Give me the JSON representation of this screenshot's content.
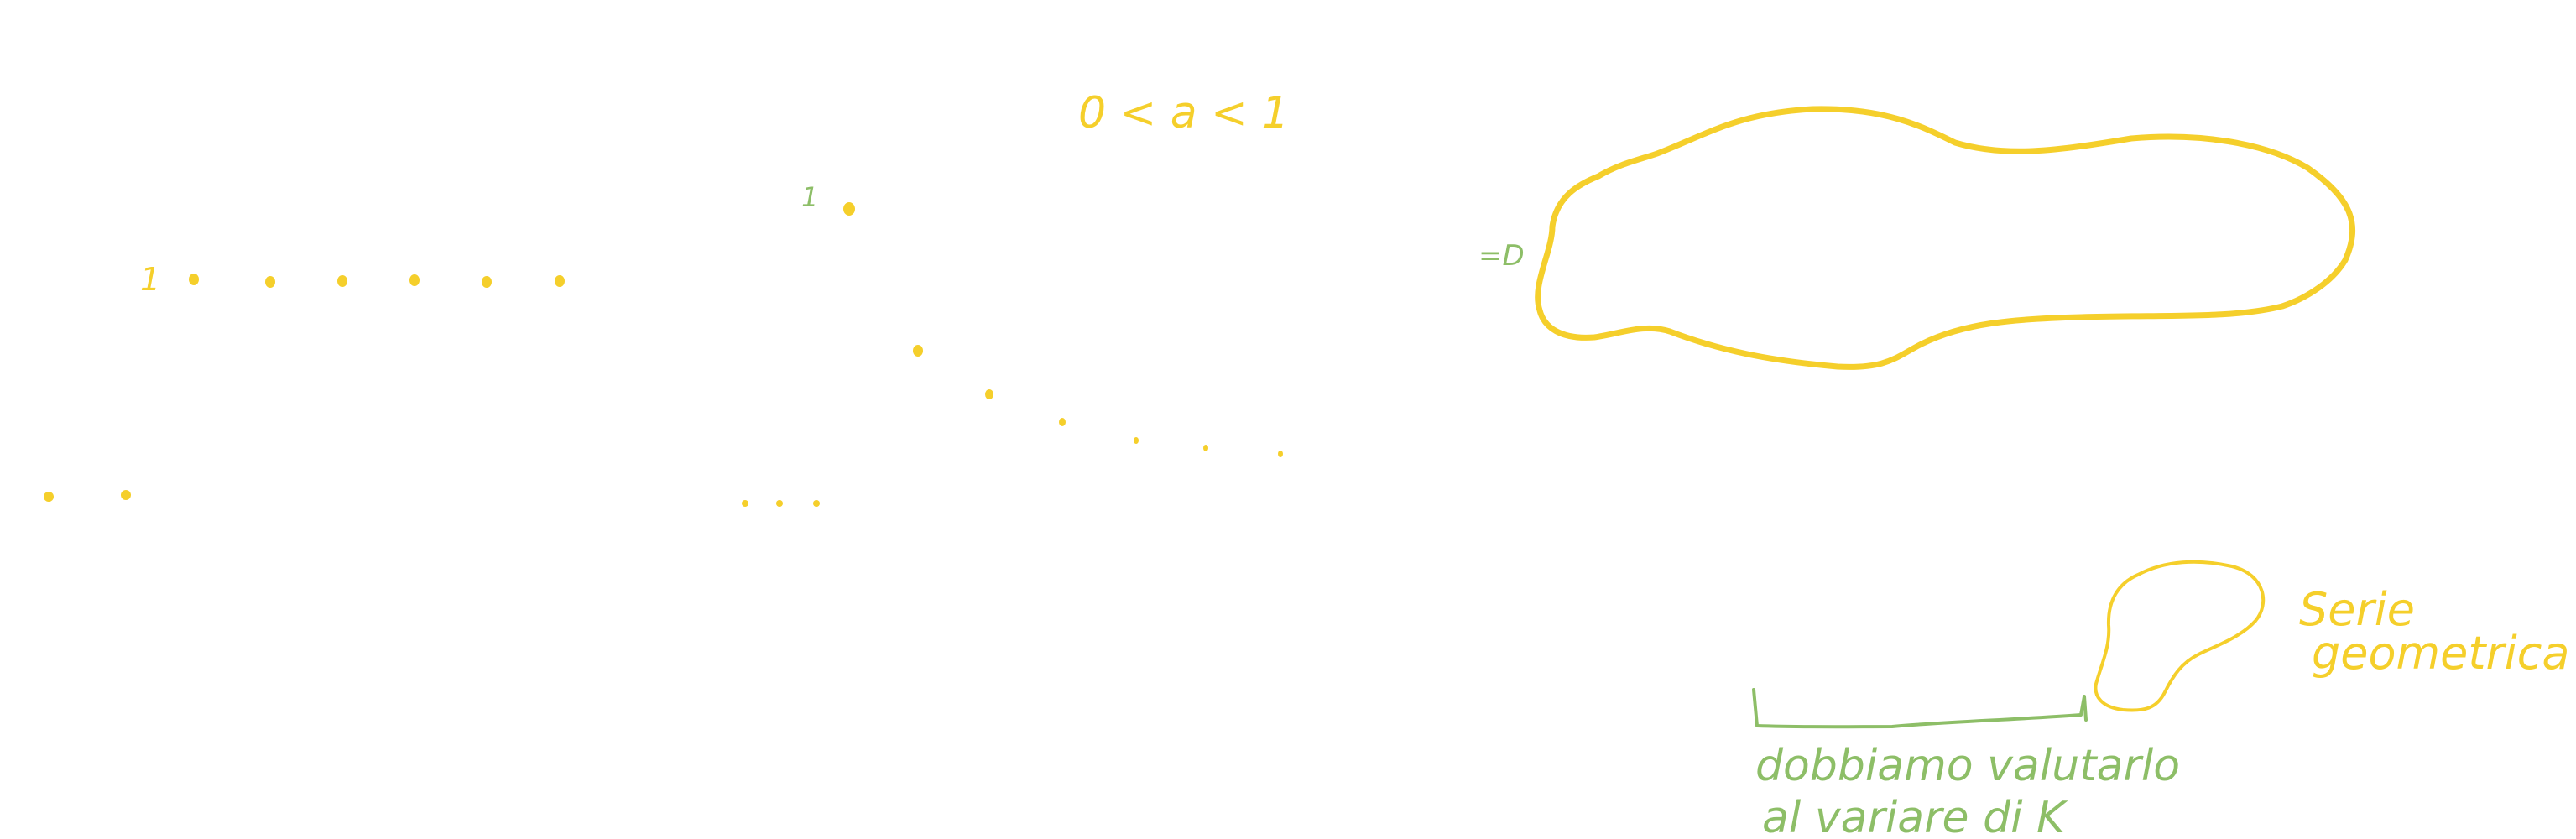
{
  "colors": {
    "background": "#ffffff",
    "ink_yellow": "#F5CF2B",
    "ink_green": "#8DBE67"
  },
  "notes": {
    "condition": "0 < a < 1",
    "arrow": "=D",
    "top_sequence_first": "1",
    "falling_sequence_first": "1",
    "series_label": [
      "Serie",
      "geometrica"
    ],
    "comment": [
      "dobbiamo valutarlo",
      "al variare di K"
    ]
  }
}
